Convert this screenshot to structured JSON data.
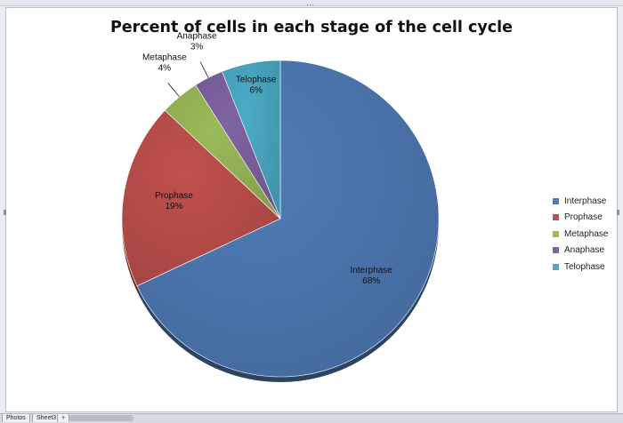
{
  "chart_data": {
    "type": "pie",
    "title": "Percent of cells in each stage of the cell cycle",
    "categories": [
      "Interphase",
      "Prophase",
      "Metaphase",
      "Anaphase",
      "Telophase"
    ],
    "values": [
      68,
      19,
      4,
      3,
      6
    ],
    "data_labels": [
      "68%",
      "19%",
      "4%",
      "3%",
      "6%"
    ],
    "colors": [
      "#4f7bb6",
      "#c0504d",
      "#9bbb59",
      "#8064a2",
      "#4bacc6"
    ],
    "start_angle_deg": 0,
    "direction": "clockwise",
    "legend": {
      "position": "right",
      "entries": [
        "Interphase",
        "Prophase",
        "Metaphase",
        "Anaphase",
        "Telophase"
      ]
    },
    "style": "3d-shaded"
  },
  "sheet_tabs": [
    "Photos",
    "Sheet3",
    "+"
  ]
}
